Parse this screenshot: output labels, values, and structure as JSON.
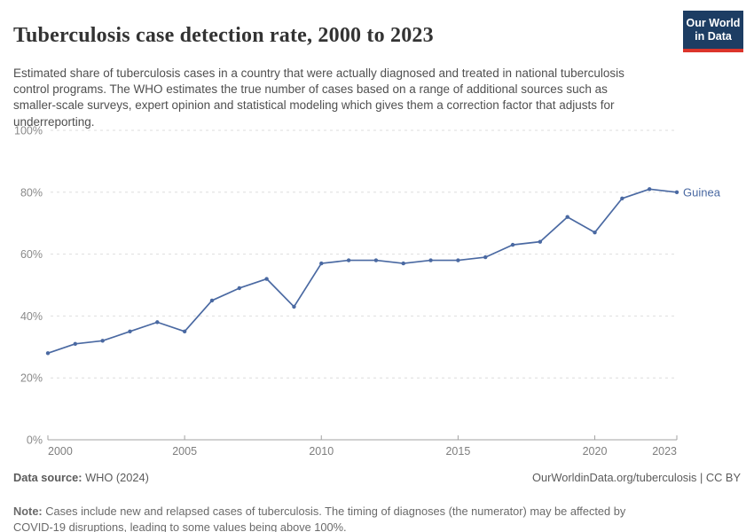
{
  "header": {
    "title": "Tuberculosis case detection rate, 2000 to 2023",
    "subtitle": "Estimated share of tuberculosis cases in a country that were actually diagnosed and treated in national tuberculosis control programs. The WHO estimates the true number of cases based on a range of additional sources such as smaller-scale surveys, expert opinion and statistical modeling which gives them a correction factor that adjusts for underreporting.",
    "logo": {
      "line1": "Our World",
      "line2": "in Data"
    }
  },
  "chart_data": {
    "type": "line",
    "title": "Tuberculosis case detection rate, 2000 to 2023",
    "x": [
      2000,
      2001,
      2002,
      2003,
      2004,
      2005,
      2006,
      2007,
      2008,
      2009,
      2010,
      2011,
      2012,
      2013,
      2014,
      2015,
      2016,
      2017,
      2018,
      2019,
      2020,
      2021,
      2022,
      2023
    ],
    "series": [
      {
        "name": "Guinea",
        "color": "#4a69a2",
        "values": [
          28,
          31,
          32,
          35,
          38,
          35,
          45,
          49,
          52,
          43,
          57,
          58,
          58,
          57,
          58,
          58,
          59,
          63,
          64,
          72,
          67,
          78,
          81,
          80
        ]
      }
    ],
    "xlim": [
      2000,
      2023
    ],
    "ylim": [
      0,
      100
    ],
    "x_ticks": [
      2000,
      2005,
      2010,
      2015,
      2020,
      2023
    ],
    "x_tick_labels": [
      "2000",
      "2005",
      "2010",
      "2015",
      "2020",
      "2023"
    ],
    "y_ticks": [
      0,
      20,
      40,
      60,
      80,
      100
    ],
    "y_tick_labels": [
      "0%",
      "20%",
      "40%",
      "60%",
      "80%",
      "100%"
    ],
    "grid": "horizontal-dashed",
    "legend": "end-of-line-label",
    "end_label": "Guinea"
  },
  "footer": {
    "datasource_label": "Data source:",
    "datasource_value": " WHO (2024)",
    "link": "OurWorldinData.org/tuberculosis | CC BY",
    "note_label": "Note:",
    "note_text": " Cases include new and relapsed cases of tuberculosis. The timing of diagnoses (the numerator) may be affected by COVID-19 disruptions, leading to some values being above 100%."
  },
  "colors": {
    "line_blue": "#4a69a2",
    "logo_navy": "#1d3d63",
    "logo_red": "#dc352b",
    "grid_gray": "#dedede",
    "axis_gray": "#a3a3a3",
    "title_text": "#333333",
    "body_text": "#4f4f4f",
    "tick_text": "#8a8a8a",
    "footer_text": "#5b5b5b"
  }
}
